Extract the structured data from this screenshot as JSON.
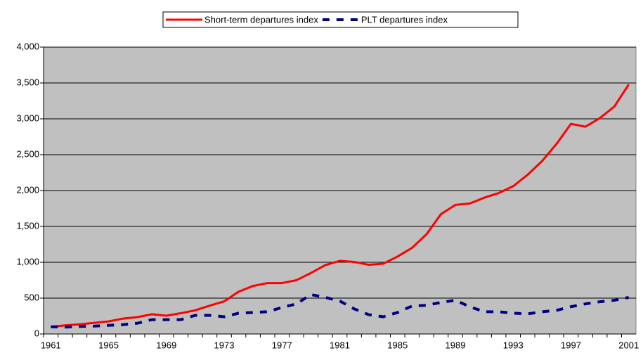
{
  "chart_data": {
    "type": "line",
    "x": [
      "1961",
      null,
      null,
      null,
      "1965",
      null,
      null,
      null,
      "1969",
      null,
      null,
      null,
      "1973",
      null,
      null,
      null,
      "1977",
      null,
      null,
      null,
      "1981",
      null,
      null,
      null,
      "1985",
      null,
      null,
      null,
      "1989",
      null,
      null,
      null,
      "1993",
      null,
      null,
      null,
      "1997",
      null,
      null,
      null,
      "2001"
    ],
    "series": [
      {
        "name": "Short-term departures index",
        "color": "#ff0000",
        "dash": false,
        "values": [
          100,
          120,
          135,
          155,
          175,
          215,
          235,
          275,
          255,
          290,
          330,
          395,
          455,
          590,
          670,
          710,
          710,
          750,
          850,
          960,
          1020,
          1005,
          965,
          980,
          1080,
          1200,
          1390,
          1670,
          1800,
          1820,
          1900,
          1965,
          2060,
          2220,
          2410,
          2650,
          2930,
          2890,
          3010,
          3170,
          3480
        ]
      },
      {
        "name": "PLT departures index",
        "color": "#000080",
        "dash": true,
        "values": [
          100,
          95,
          105,
          110,
          120,
          130,
          150,
          200,
          200,
          200,
          260,
          260,
          240,
          290,
          300,
          310,
          370,
          420,
          550,
          510,
          460,
          350,
          270,
          240,
          300,
          390,
          400,
          440,
          470,
          380,
          310,
          310,
          290,
          280,
          310,
          330,
          380,
          420,
          450,
          470,
          510
        ]
      }
    ],
    "ylim": [
      0,
      4000
    ],
    "yticks": [
      0,
      500,
      {
        "value": 1000,
        "label": "1,000"
      },
      {
        "value": 1500,
        "label": "1,500"
      },
      {
        "value": 2000,
        "label": "2,000"
      },
      {
        "value": 2500,
        "label": "2,500"
      },
      {
        "value": 3000,
        "label": "3,000"
      },
      {
        "value": 3500,
        "label": "3,500"
      },
      {
        "value": 4000,
        "label": "4,000"
      }
    ],
    "grid": true,
    "legend": "top",
    "plot_background": "#c0c0c0"
  }
}
